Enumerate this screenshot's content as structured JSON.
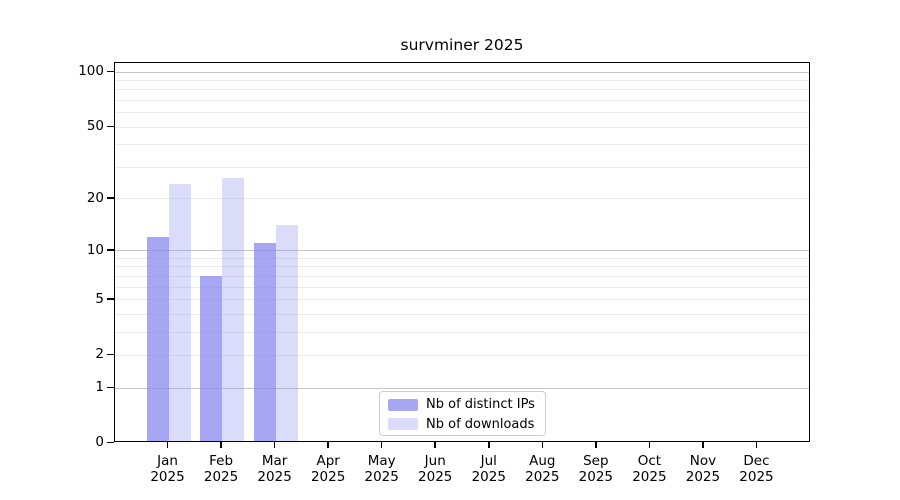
{
  "chart": {
    "title": "survminer 2025"
  },
  "chart_data": {
    "type": "bar",
    "title": "survminer 2025",
    "categories": [
      "Jan",
      "Feb",
      "Mar",
      "Apr",
      "May",
      "Jun",
      "Jul",
      "Aug",
      "Sep",
      "Oct",
      "Nov",
      "Dec"
    ],
    "category_year": "2025",
    "series": [
      {
        "name": "Nb of distinct IPs",
        "color": "rgba(136,136,238,0.75)",
        "values": [
          12,
          7,
          11,
          0,
          0,
          0,
          0,
          0,
          0,
          0,
          0,
          0
        ]
      },
      {
        "name": "Nb of downloads",
        "color": "rgba(136,136,238,0.30)",
        "values": [
          24,
          26,
          14,
          0,
          0,
          0,
          0,
          0,
          0,
          0,
          0,
          0
        ]
      }
    ],
    "xlabel": "",
    "ylabel": "",
    "yscale": "log1p",
    "ylim": [
      0,
      113
    ],
    "yticks": [
      0,
      1,
      2,
      5,
      10,
      20,
      50,
      100
    ],
    "gridlines": {
      "minor": [
        2,
        3,
        4,
        5,
        6,
        7,
        8,
        9,
        20,
        30,
        40,
        50,
        60,
        70,
        80,
        90
      ],
      "major": [
        1,
        10,
        100
      ]
    },
    "grid": true,
    "legend_position": "bottom-center"
  },
  "colors": {
    "bar_primary": "rgba(136,136,238,0.75)",
    "bar_secondary": "rgba(136,136,238,0.30)",
    "grid_minor": "#ebebeb",
    "grid_major": "#c6c6c6",
    "axis": "#000000",
    "legend_border": "#cccccc",
    "text": "#000000",
    "background": "#ffffff"
  }
}
